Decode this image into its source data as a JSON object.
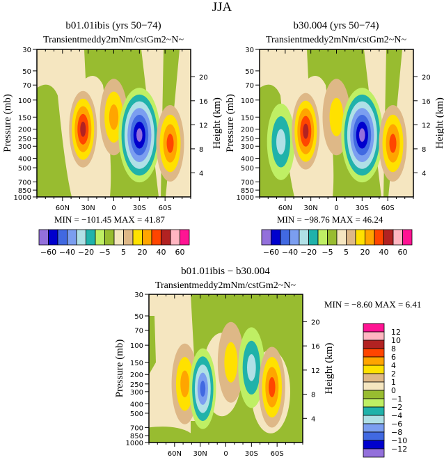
{
  "figure_title": "JJA",
  "chart_data": [
    {
      "type": "heatmap",
      "name": "panel-b01",
      "title": "b01.01ibis (yrs 50-74)",
      "subtitle": "Transient eddy momentum flux (m^2/s^2) ~N~",
      "subtitle_rendered": "Transientmeddy2mNm/cstGm2~N~",
      "ylabel": "Pressure (mb)",
      "ylabel_right": "Height (km)",
      "x_ticks": [
        "60N",
        "30N",
        "0",
        "30S",
        "60S"
      ],
      "x_tick_values": [
        60,
        30,
        0,
        -30,
        -60
      ],
      "xlim": [
        90,
        -90
      ],
      "y_ticks": [
        30,
        50,
        70,
        100,
        150,
        200,
        250,
        300,
        400,
        500,
        700,
        850,
        1000
      ],
      "ylim": [
        30,
        1000
      ],
      "yscale": "log",
      "y_right_ticks": [
        20,
        16,
        12,
        8,
        4
      ],
      "min_label": "MIN =",
      "min_value": "-101.45",
      "max_label": "MAX =",
      "max_value": "41.87",
      "features": [
        {
          "lat": 36,
          "p": 200,
          "peak": 41.87,
          "sign": "positive"
        },
        {
          "lat": 0,
          "p": 150,
          "peak": 20,
          "sign": "positive"
        },
        {
          "lat": -30,
          "p": 230,
          "peak": -101.45,
          "sign": "negative"
        },
        {
          "lat": -66,
          "p": 280,
          "peak": 35,
          "sign": "positive"
        }
      ],
      "colorbar": {
        "orientation": "horizontal",
        "levels": [
          -60,
          -50,
          -40,
          -30,
          -20,
          -10,
          -5,
          0,
          5,
          10,
          20,
          30,
          40,
          50,
          60
        ],
        "labels": [
          "-60",
          "-40",
          "-20",
          "-5",
          "5",
          "20",
          "40",
          "60"
        ],
        "colors": [
          "#9370db",
          "#0000cd",
          "#4169e1",
          "#7b9ef0",
          "#b0e0e6",
          "#20b2aa",
          "#bfef64",
          "#98bc30",
          "#f5e6c0",
          "#deb887",
          "#ffe100",
          "#ffa500",
          "#ff4500",
          "#b22222",
          "#ffb6c1",
          "#ff1493"
        ]
      }
    },
    {
      "type": "heatmap",
      "name": "panel-b30",
      "title": "b30.004 (yrs 50-74)",
      "subtitle": "Transient eddy momentum flux (m^2/s^2) ~N~",
      "subtitle_rendered": "Transientmeddy2mNm/cstGm2~N~",
      "ylabel": "Pressure (mb)",
      "ylabel_right": "Height (km)",
      "x_ticks": [
        "60N",
        "30N",
        "0",
        "30S",
        "60S"
      ],
      "x_tick_values": [
        60,
        30,
        0,
        -30,
        -60
      ],
      "xlim": [
        90,
        -90
      ],
      "y_ticks": [
        30,
        50,
        70,
        100,
        150,
        200,
        250,
        300,
        400,
        500,
        700,
        850,
        1000
      ],
      "ylim": [
        30,
        1000
      ],
      "yscale": "log",
      "y_right_ticks": [
        20,
        16,
        12,
        8,
        4
      ],
      "min_label": "MIN =",
      "min_value": "-98.76",
      "max_label": "MAX =",
      "max_value": "46.24",
      "features": [
        {
          "lat": 65,
          "p": 270,
          "peak": -20,
          "sign": "negative"
        },
        {
          "lat": 36,
          "p": 210,
          "peak": 46.24,
          "sign": "positive"
        },
        {
          "lat": 0,
          "p": 150,
          "peak": 10,
          "sign": "positive"
        },
        {
          "lat": -30,
          "p": 230,
          "peak": -98.76,
          "sign": "negative"
        },
        {
          "lat": -66,
          "p": 280,
          "peak": 35,
          "sign": "positive"
        }
      ],
      "colorbar": {
        "orientation": "horizontal",
        "levels": [
          -60,
          -50,
          -40,
          -30,
          -20,
          -10,
          -5,
          0,
          5,
          10,
          20,
          30,
          40,
          50,
          60
        ],
        "labels": [
          "-60",
          "-40",
          "-20",
          "-5",
          "5",
          "20",
          "40",
          "60"
        ],
        "colors": [
          "#9370db",
          "#0000cd",
          "#4169e1",
          "#7b9ef0",
          "#b0e0e6",
          "#20b2aa",
          "#bfef64",
          "#98bc30",
          "#f5e6c0",
          "#deb887",
          "#ffe100",
          "#ffa500",
          "#ff4500",
          "#b22222",
          "#ffb6c1",
          "#ff1493"
        ]
      }
    },
    {
      "type": "heatmap",
      "name": "panel-diff",
      "title": "b01.01ibis - b30.004",
      "subtitle": "Transient eddy momentum flux (m^2/s^2) ~N~",
      "subtitle_rendered": "Transientmeddy2mNm/cstGm2~N~",
      "ylabel": "Pressure (mb)",
      "ylabel_right": "Height (km)",
      "x_ticks": [
        "60N",
        "30N",
        "0",
        "30S",
        "60S"
      ],
      "x_tick_values": [
        60,
        30,
        0,
        -30,
        -60
      ],
      "xlim": [
        90,
        -90
      ],
      "y_ticks": [
        30,
        50,
        70,
        100,
        150,
        200,
        250,
        300,
        400,
        500,
        700,
        850,
        1000
      ],
      "ylim": [
        30,
        1000
      ],
      "yscale": "log",
      "y_right_ticks": [
        20,
        16,
        12,
        8,
        4
      ],
      "min_label": "MIN =",
      "min_value": "-8.60",
      "max_label": "MAX =",
      "max_value": "6.41",
      "features": [
        {
          "lat": 48,
          "p": 250,
          "peak": 5,
          "sign": "positive"
        },
        {
          "lat": 27,
          "p": 280,
          "peak": -8.6,
          "sign": "negative"
        },
        {
          "lat": -6,
          "p": 150,
          "peak": 3,
          "sign": "positive"
        },
        {
          "lat": -30,
          "p": 170,
          "peak": -5,
          "sign": "negative"
        },
        {
          "lat": -54,
          "p": 270,
          "peak": 6.41,
          "sign": "positive"
        }
      ],
      "colorbar": {
        "orientation": "vertical",
        "levels": [
          -12,
          -10,
          -8,
          -6,
          -4,
          -2,
          -1,
          0,
          1,
          2,
          4,
          6,
          8,
          10,
          12
        ],
        "labels": [
          "12",
          "10",
          "8",
          "6",
          "4",
          "2",
          "1",
          "0",
          "-1",
          "-2",
          "-4",
          "-6",
          "-8",
          "-10",
          "-12"
        ],
        "colors": [
          "#9370db",
          "#0000cd",
          "#4169e1",
          "#7b9ef0",
          "#b0e0e6",
          "#20b2aa",
          "#bfef64",
          "#98bc30",
          "#f5e6c0",
          "#deb887",
          "#ffe100",
          "#ffa500",
          "#ff4500",
          "#b22222",
          "#ffb6c1",
          "#ff1493"
        ]
      }
    }
  ]
}
